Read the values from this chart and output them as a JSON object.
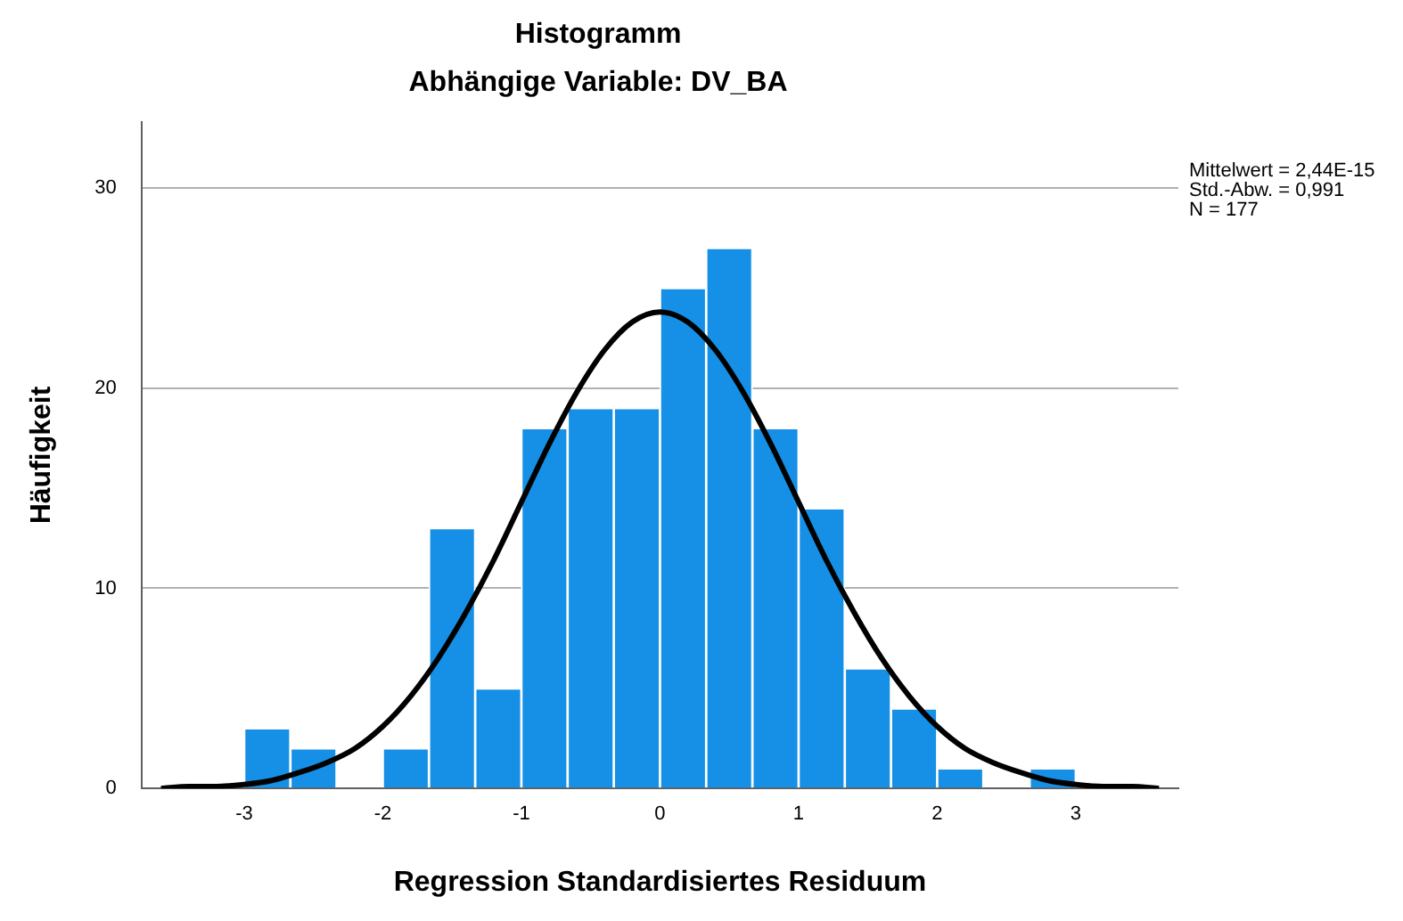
{
  "chart_data": {
    "type": "histogram",
    "title": "Histogramm",
    "subtitle": "Abhängige Variable: DV_BA",
    "xlabel": "Regression Standardisiertes Residuum",
    "ylabel": "Häufigkeit",
    "bins": [
      -3,
      -2.667,
      -2.333,
      -2,
      -1.667,
      -1.333,
      -1,
      -0.667,
      -0.333,
      0,
      0.333,
      0.667,
      1,
      1.333,
      1.667,
      2,
      2.333,
      2.667,
      3
    ],
    "values": [
      3,
      2,
      0,
      2,
      13,
      5,
      18,
      19,
      19,
      25,
      27,
      18,
      14,
      6,
      4,
      1,
      0,
      1
    ],
    "color": "#1590e6",
    "series": [
      {
        "type": "line",
        "color": "#000000",
        "x": [
          -3.6,
          -3.4,
          -3.2,
          -3,
          -2.8,
          -2.6,
          -2.4,
          -2.2,
          -2,
          -1.8,
          -1.6,
          -1.4,
          -1.2,
          -1,
          -0.8,
          -0.6,
          -0.4,
          -0.2,
          0,
          0.2,
          0.4,
          0.6,
          0.8,
          1,
          1.2,
          1.4,
          1.6,
          1.8,
          2,
          2.2,
          2.4,
          2.6,
          2.8,
          3,
          3.2,
          3.4,
          3.6
        ],
        "values": [
          0,
          0.1,
          0.1,
          0.2,
          0.4,
          0.8,
          1.3,
          2,
          3.1,
          4.6,
          6.5,
          8.8,
          11.4,
          14.3,
          17.2,
          19.8,
          21.9,
          23.3,
          23.8,
          23.3,
          21.9,
          19.8,
          17.2,
          14.3,
          11.4,
          8.8,
          6.5,
          4.6,
          3.1,
          2,
          1.3,
          0.8,
          0.4,
          0.2,
          0.1,
          0.1,
          0
        ]
      }
    ],
    "xlim": [
      -3.74,
      3.74
    ],
    "xticks": [
      -3,
      -2,
      -1,
      0,
      1,
      2,
      3
    ],
    "ylim": [
      0,
      33.3
    ],
    "yticks": [
      0,
      10,
      20,
      30
    ],
    "grid": "y",
    "legend": false,
    "annotations": [
      "Mittelwert = 2,44E-15",
      "Std.-Abw. = 0,991",
      "N = 177"
    ]
  }
}
